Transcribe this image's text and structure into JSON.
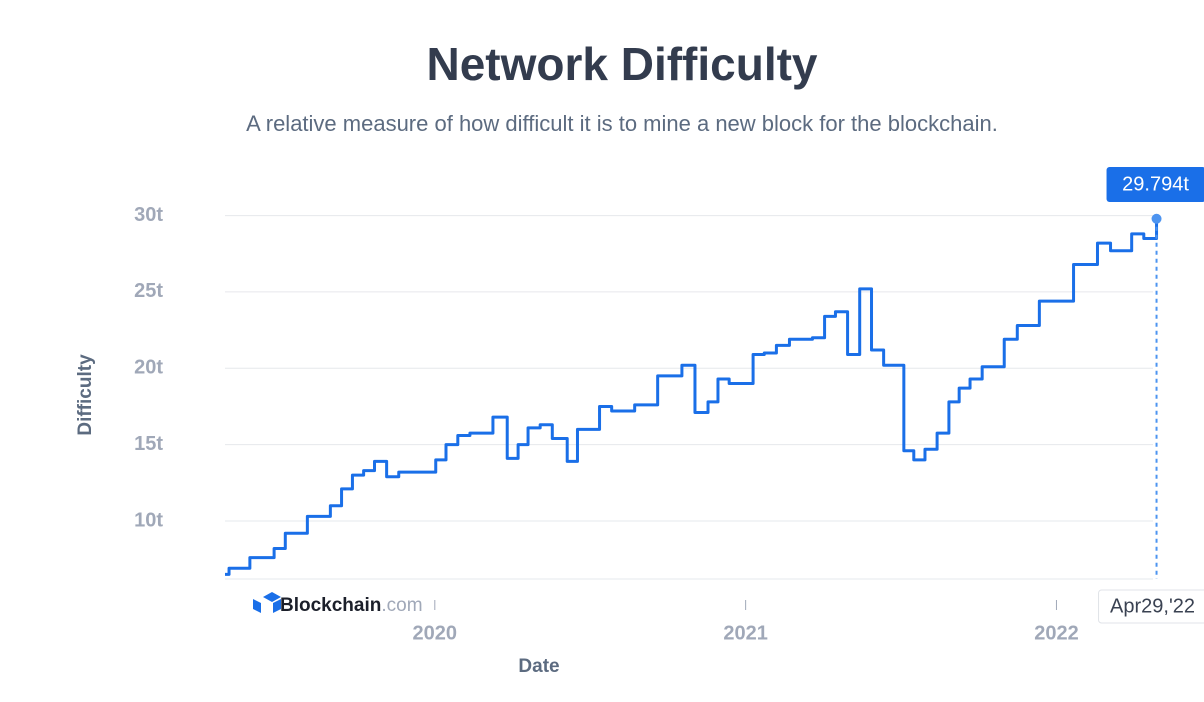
{
  "chart_data": {
    "type": "line",
    "title": "Network Difficulty",
    "subtitle": "A relative measure of how difficult it is to mine a new block for the blockchain.",
    "x_label": "Date",
    "y_label": "Difficulty",
    "watermark": "Blockchain",
    "watermark_suffix": ".com",
    "step": true,
    "grid": true,
    "x": [
      2019.325,
      2019.338,
      2019.405,
      2019.483,
      2019.519,
      2019.59,
      2019.664,
      2019.7,
      2019.735,
      2019.771,
      2019.806,
      2019.845,
      2019.884,
      2020.003,
      2020.036,
      2020.074,
      2020.113,
      2020.187,
      2020.233,
      2020.268,
      2020.3,
      2020.339,
      2020.378,
      2020.426,
      2020.459,
      2020.53,
      2020.569,
      2020.643,
      2020.717,
      2020.795,
      2020.837,
      2020.879,
      2020.911,
      2020.947,
      2021.024,
      2021.06,
      2021.099,
      2021.141,
      2021.215,
      2021.254,
      2021.289,
      2021.328,
      2021.367,
      2021.405,
      2021.444,
      2021.509,
      2021.541,
      2021.577,
      2021.616,
      2021.654,
      2021.687,
      2021.722,
      2021.761,
      2021.832,
      2021.874,
      2021.945,
      2022.055,
      2022.132,
      2022.174,
      2022.242,
      2022.281,
      2022.322
    ],
    "series": [
      {
        "name": "Difficulty",
        "color": "#1a6fe8",
        "values": [
          6.5,
          6.9,
          7.6,
          8.2,
          9.2,
          10.3,
          11.0,
          12.1,
          13.0,
          13.3,
          13.9,
          12.9,
          13.2,
          14.0,
          15.0,
          15.6,
          15.75,
          16.8,
          14.1,
          15.0,
          16.1,
          16.3,
          15.4,
          13.9,
          16.0,
          17.5,
          17.2,
          17.6,
          19.5,
          20.2,
          17.1,
          17.8,
          19.3,
          19.0,
          20.9,
          21.0,
          21.5,
          21.9,
          22.0,
          23.4,
          23.7,
          20.9,
          25.2,
          21.2,
          20.2,
          14.6,
          14.0,
          14.7,
          15.75,
          17.8,
          18.7,
          19.3,
          20.1,
          21.9,
          22.8,
          24.4,
          26.8,
          28.2,
          27.7,
          28.8,
          28.5,
          29.794
        ]
      }
    ],
    "highlight": {
      "value_label": "29.794t",
      "x_label": "Apr29,'22"
    },
    "xlim": [
      2019.325,
      2022.346
    ],
    "xticks": [
      2020,
      2021,
      2022
    ],
    "ylim": [
      6.2,
      30.3
    ],
    "yticks": [
      {
        "value": 10,
        "label": "10t"
      },
      {
        "value": 15,
        "label": "15t"
      },
      {
        "value": 20,
        "label": "20t"
      },
      {
        "value": 25,
        "label": "25t"
      },
      {
        "value": 30,
        "label": "30t"
      }
    ]
  }
}
